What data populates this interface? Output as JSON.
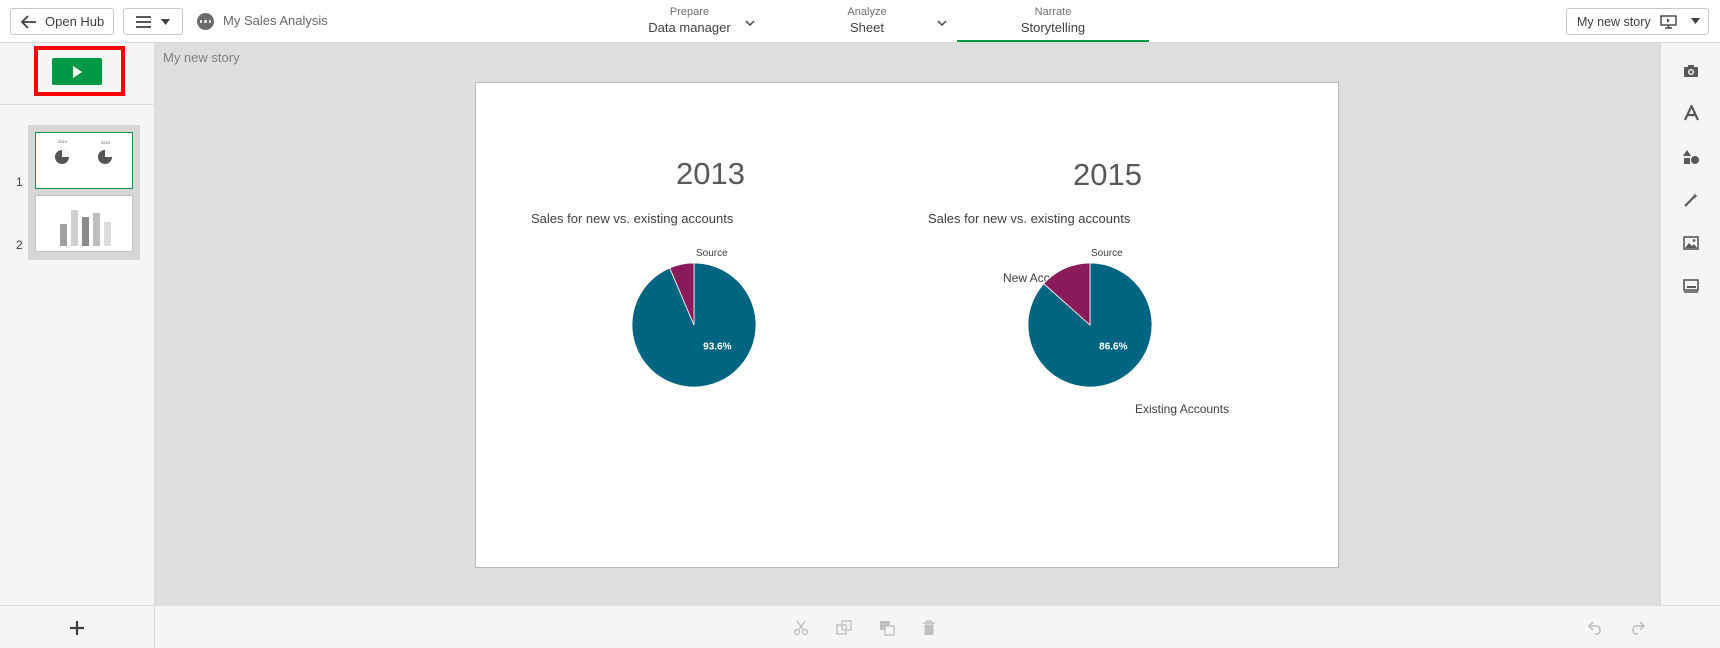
{
  "topbar": {
    "open_hub_label": "Open Hub",
    "app_name": "My Sales Analysis",
    "tabs": [
      {
        "small": "Prepare",
        "big": "Data manager"
      },
      {
        "small": "Analyze",
        "big": "Sheet"
      },
      {
        "small": "Narrate",
        "big": "Storytelling"
      }
    ],
    "story_selector": "My new story"
  },
  "left_panel": {
    "slide_numbers": [
      "1",
      "2"
    ],
    "thumb1_labels": [
      "2013",
      "2015"
    ]
  },
  "canvas": {
    "story_title": "My new story",
    "charts": [
      {
        "year": "2013",
        "subtitle": "Sales for new vs. existing accounts",
        "legend_title": "Source",
        "data_label": "93.6%",
        "outside_labels": []
      },
      {
        "year": "2015",
        "subtitle": "Sales for new vs. existing accounts",
        "legend_title": "Source",
        "data_label": "86.6%",
        "outside_labels": [
          "New Accounts",
          "Existing Accounts"
        ]
      }
    ]
  },
  "chart_data": [
    {
      "type": "pie",
      "title": "2013",
      "subtitle": "Sales for new vs. existing accounts",
      "legend_title": "Source",
      "categories": [
        "Existing Accounts",
        "New Accounts"
      ],
      "values": [
        93.6,
        6.4
      ],
      "colors": [
        "#006580",
        "#8a1a59"
      ]
    },
    {
      "type": "pie",
      "title": "2015",
      "subtitle": "Sales for new vs. existing accounts",
      "legend_title": "Source",
      "categories": [
        "Existing Accounts",
        "New Accounts"
      ],
      "values": [
        86.6,
        13.4
      ],
      "colors": [
        "#006580",
        "#8a1a59"
      ]
    }
  ],
  "colors": {
    "accent_green": "#009845",
    "existing_accounts": "#006580",
    "new_accounts": "#8a1a59",
    "highlight_red": "#ff0000"
  },
  "icons": {
    "right_panel": [
      "camera-icon",
      "text-icon",
      "shapes-icon",
      "effects-wand-icon",
      "media-icon",
      "embed-sheet-icon"
    ],
    "bottom": [
      "cut-icon",
      "copy-icon",
      "paste-icon",
      "delete-icon",
      "undo-icon",
      "redo-icon"
    ]
  }
}
